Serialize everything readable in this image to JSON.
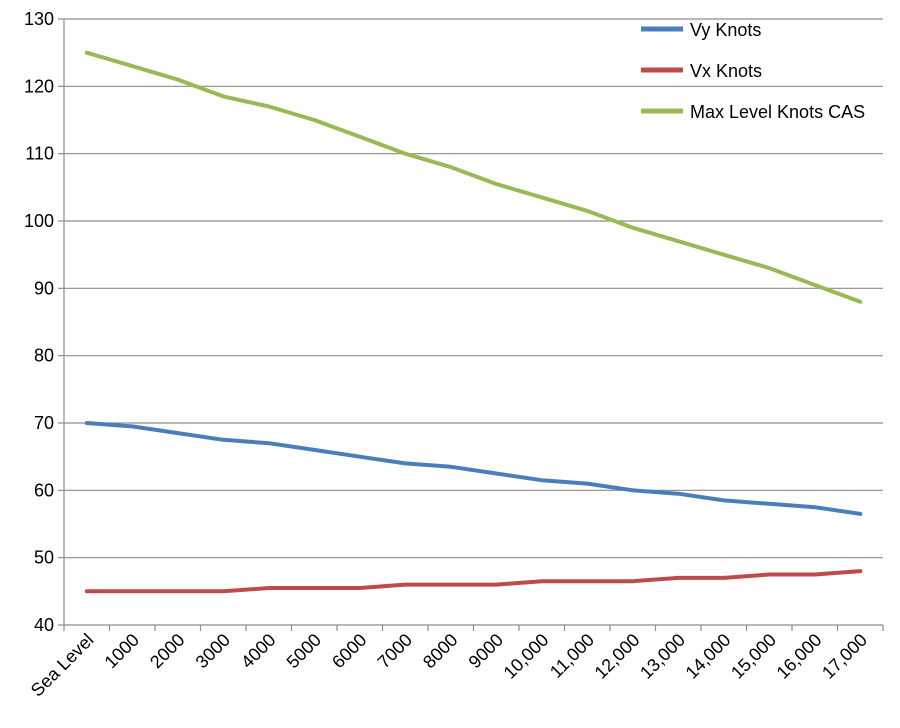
{
  "chart_data": {
    "type": "line",
    "title": "",
    "xlabel": "",
    "ylabel": "",
    "categories": [
      "Sea Level",
      "1000",
      "2000",
      "3000",
      "4000",
      "5000",
      "6000",
      "7000",
      "8000",
      "9000",
      "10,000",
      "11,000",
      "12,000",
      "13,000",
      "14,000",
      "15,000",
      "16,000",
      "17,000"
    ],
    "ylim": [
      40,
      130
    ],
    "yticks": [
      40,
      50,
      60,
      70,
      80,
      90,
      100,
      110,
      120,
      130
    ],
    "grid": true,
    "legend_position": "top-right",
    "series": [
      {
        "name": "Vy Knots",
        "color": "#4a7ebb",
        "values": [
          70,
          69.5,
          68.5,
          67.5,
          67,
          66,
          65,
          64,
          63.5,
          62.5,
          61.5,
          61,
          60,
          59.5,
          58.5,
          58,
          57.5,
          56.5
        ]
      },
      {
        "name": "Vx Knots",
        "color": "#be4b48",
        "values": [
          45,
          45,
          45,
          45,
          45.5,
          45.5,
          45.5,
          46,
          46,
          46,
          46.5,
          46.5,
          46.5,
          47,
          47,
          47.5,
          47.5,
          48
        ]
      },
      {
        "name": "Max Level Knots CAS",
        "color": "#98b954",
        "values": [
          125,
          123,
          121,
          118.5,
          117,
          115,
          112.5,
          110,
          108,
          105.5,
          103.5,
          101.5,
          99,
          97,
          95,
          93,
          90.5,
          88
        ]
      }
    ]
  }
}
